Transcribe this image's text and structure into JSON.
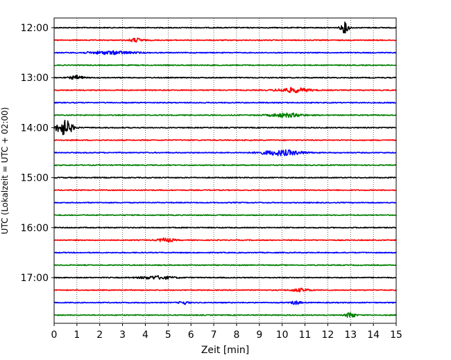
{
  "chart_data": {
    "type": "line",
    "title": "",
    "xlabel": "Zeit  [min]",
    "ylabel": "UTC (Lokalzeit = UTC + 02:00)",
    "xlim": [
      0,
      15
    ],
    "x_ticks": [
      "0",
      "1",
      "2",
      "3",
      "4",
      "5",
      "6",
      "7",
      "8",
      "9",
      "10",
      "11",
      "12",
      "13",
      "14",
      "15"
    ],
    "y_ticks": [
      "12:00",
      "13:00",
      "14:00",
      "15:00",
      "16:00",
      "17:00"
    ],
    "grid": "vertical dotted",
    "colors": [
      "#000000",
      "#ff0000",
      "#0000ff",
      "#008000"
    ],
    "traces": [
      {
        "start": "12:00",
        "color": "#000000",
        "events": [
          {
            "t": 12.75,
            "amp": 1.4,
            "dur": 0.35
          }
        ]
      },
      {
        "start": "12:15",
        "color": "#ff0000",
        "events": [
          {
            "t": 3.6,
            "amp": 0.5,
            "dur": 0.6
          }
        ]
      },
      {
        "start": "12:30",
        "color": "#0000ff",
        "events": [
          {
            "t": 2.5,
            "amp": 0.4,
            "dur": 2.0
          }
        ]
      },
      {
        "start": "12:45",
        "color": "#008000",
        "events": []
      },
      {
        "start": "13:00",
        "color": "#000000",
        "events": [
          {
            "t": 1.0,
            "amp": 0.5,
            "dur": 0.6
          }
        ]
      },
      {
        "start": "13:15",
        "color": "#ff0000",
        "events": [
          {
            "t": 10.5,
            "amp": 0.6,
            "dur": 1.4
          }
        ]
      },
      {
        "start": "13:30",
        "color": "#0000ff",
        "events": []
      },
      {
        "start": "13:45",
        "color": "#008000",
        "events": [
          {
            "t": 10.2,
            "amp": 0.5,
            "dur": 1.5
          }
        ]
      },
      {
        "start": "14:00",
        "color": "#000000",
        "events": [
          {
            "t": 0.45,
            "amp": 2.0,
            "dur": 0.7
          }
        ]
      },
      {
        "start": "14:15",
        "color": "#ff0000",
        "events": []
      },
      {
        "start": "14:30",
        "color": "#0000ff",
        "events": [
          {
            "t": 10.0,
            "amp": 0.7,
            "dur": 1.8
          }
        ]
      },
      {
        "start": "14:45",
        "color": "#008000",
        "events": []
      },
      {
        "start": "15:00",
        "color": "#000000",
        "events": []
      },
      {
        "start": "15:15",
        "color": "#ff0000",
        "events": []
      },
      {
        "start": "15:30",
        "color": "#0000ff",
        "events": []
      },
      {
        "start": "15:45",
        "color": "#008000",
        "events": []
      },
      {
        "start": "16:00",
        "color": "#000000",
        "events": []
      },
      {
        "start": "16:15",
        "color": "#ff0000",
        "events": [
          {
            "t": 4.9,
            "amp": 0.5,
            "dur": 0.7
          }
        ]
      },
      {
        "start": "16:30",
        "color": "#0000ff",
        "events": []
      },
      {
        "start": "16:45",
        "color": "#008000",
        "events": []
      },
      {
        "start": "17:00",
        "color": "#000000",
        "events": [
          {
            "t": 4.5,
            "amp": 0.4,
            "dur": 1.5
          }
        ]
      },
      {
        "start": "17:15",
        "color": "#ff0000",
        "events": [
          {
            "t": 10.8,
            "amp": 0.4,
            "dur": 0.8
          }
        ]
      },
      {
        "start": "17:30",
        "color": "#0000ff",
        "events": [
          {
            "t": 5.7,
            "amp": 0.4,
            "dur": 0.4
          },
          {
            "t": 10.6,
            "amp": 0.5,
            "dur": 0.4
          }
        ]
      },
      {
        "start": "17:45",
        "color": "#008000",
        "events": [
          {
            "t": 13.0,
            "amp": 0.8,
            "dur": 0.4
          }
        ]
      }
    ]
  }
}
